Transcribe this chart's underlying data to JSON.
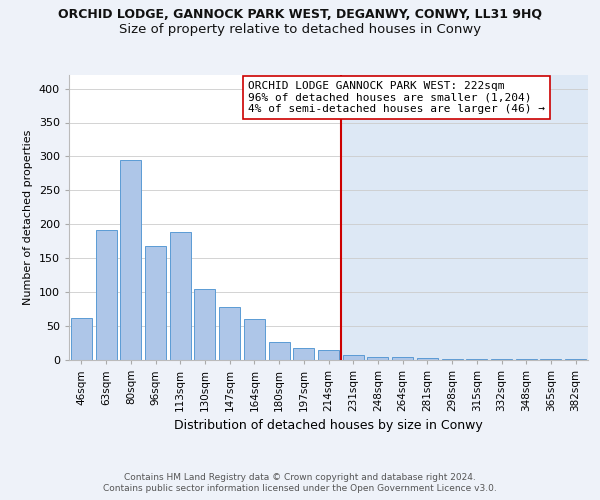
{
  "title": "ORCHID LODGE, GANNOCK PARK WEST, DEGANWY, CONWY, LL31 9HQ",
  "subtitle": "Size of property relative to detached houses in Conwy",
  "xlabel": "Distribution of detached houses by size in Conwy",
  "ylabel": "Number of detached properties",
  "categories": [
    "46sqm",
    "63sqm",
    "80sqm",
    "96sqm",
    "113sqm",
    "130sqm",
    "147sqm",
    "164sqm",
    "180sqm",
    "197sqm",
    "214sqm",
    "231sqm",
    "248sqm",
    "264sqm",
    "281sqm",
    "298sqm",
    "315sqm",
    "332sqm",
    "348sqm",
    "365sqm",
    "382sqm"
  ],
  "values": [
    62,
    192,
    295,
    168,
    189,
    104,
    78,
    60,
    26,
    18,
    15,
    8,
    5,
    4,
    3,
    2,
    2,
    1,
    1,
    1,
    1
  ],
  "bar_color": "#aec6e8",
  "bar_edge_color": "#5b9bd5",
  "vline_x_index": 11,
  "vline_color": "#cc0000",
  "right_bg_color": "#dde8f5",
  "annotation_text_line1": "ORCHID LODGE GANNOCK PARK WEST: 222sqm",
  "annotation_text_line2": "96% of detached houses are smaller (1,204)",
  "annotation_text_line3": "4% of semi-detached houses are larger (46) →",
  "background_color": "#eef2f9",
  "plot_background": "#ffffff",
  "footer_line1": "Contains HM Land Registry data © Crown copyright and database right 2024.",
  "footer_line2": "Contains public sector information licensed under the Open Government Licence v3.0.",
  "ylim": [
    0,
    420
  ],
  "yticks": [
    0,
    50,
    100,
    150,
    200,
    250,
    300,
    350,
    400
  ],
  "title_fontsize": 9,
  "subtitle_fontsize": 9.5,
  "annotation_fontsize": 8,
  "xlabel_fontsize": 9,
  "ylabel_fontsize": 8
}
